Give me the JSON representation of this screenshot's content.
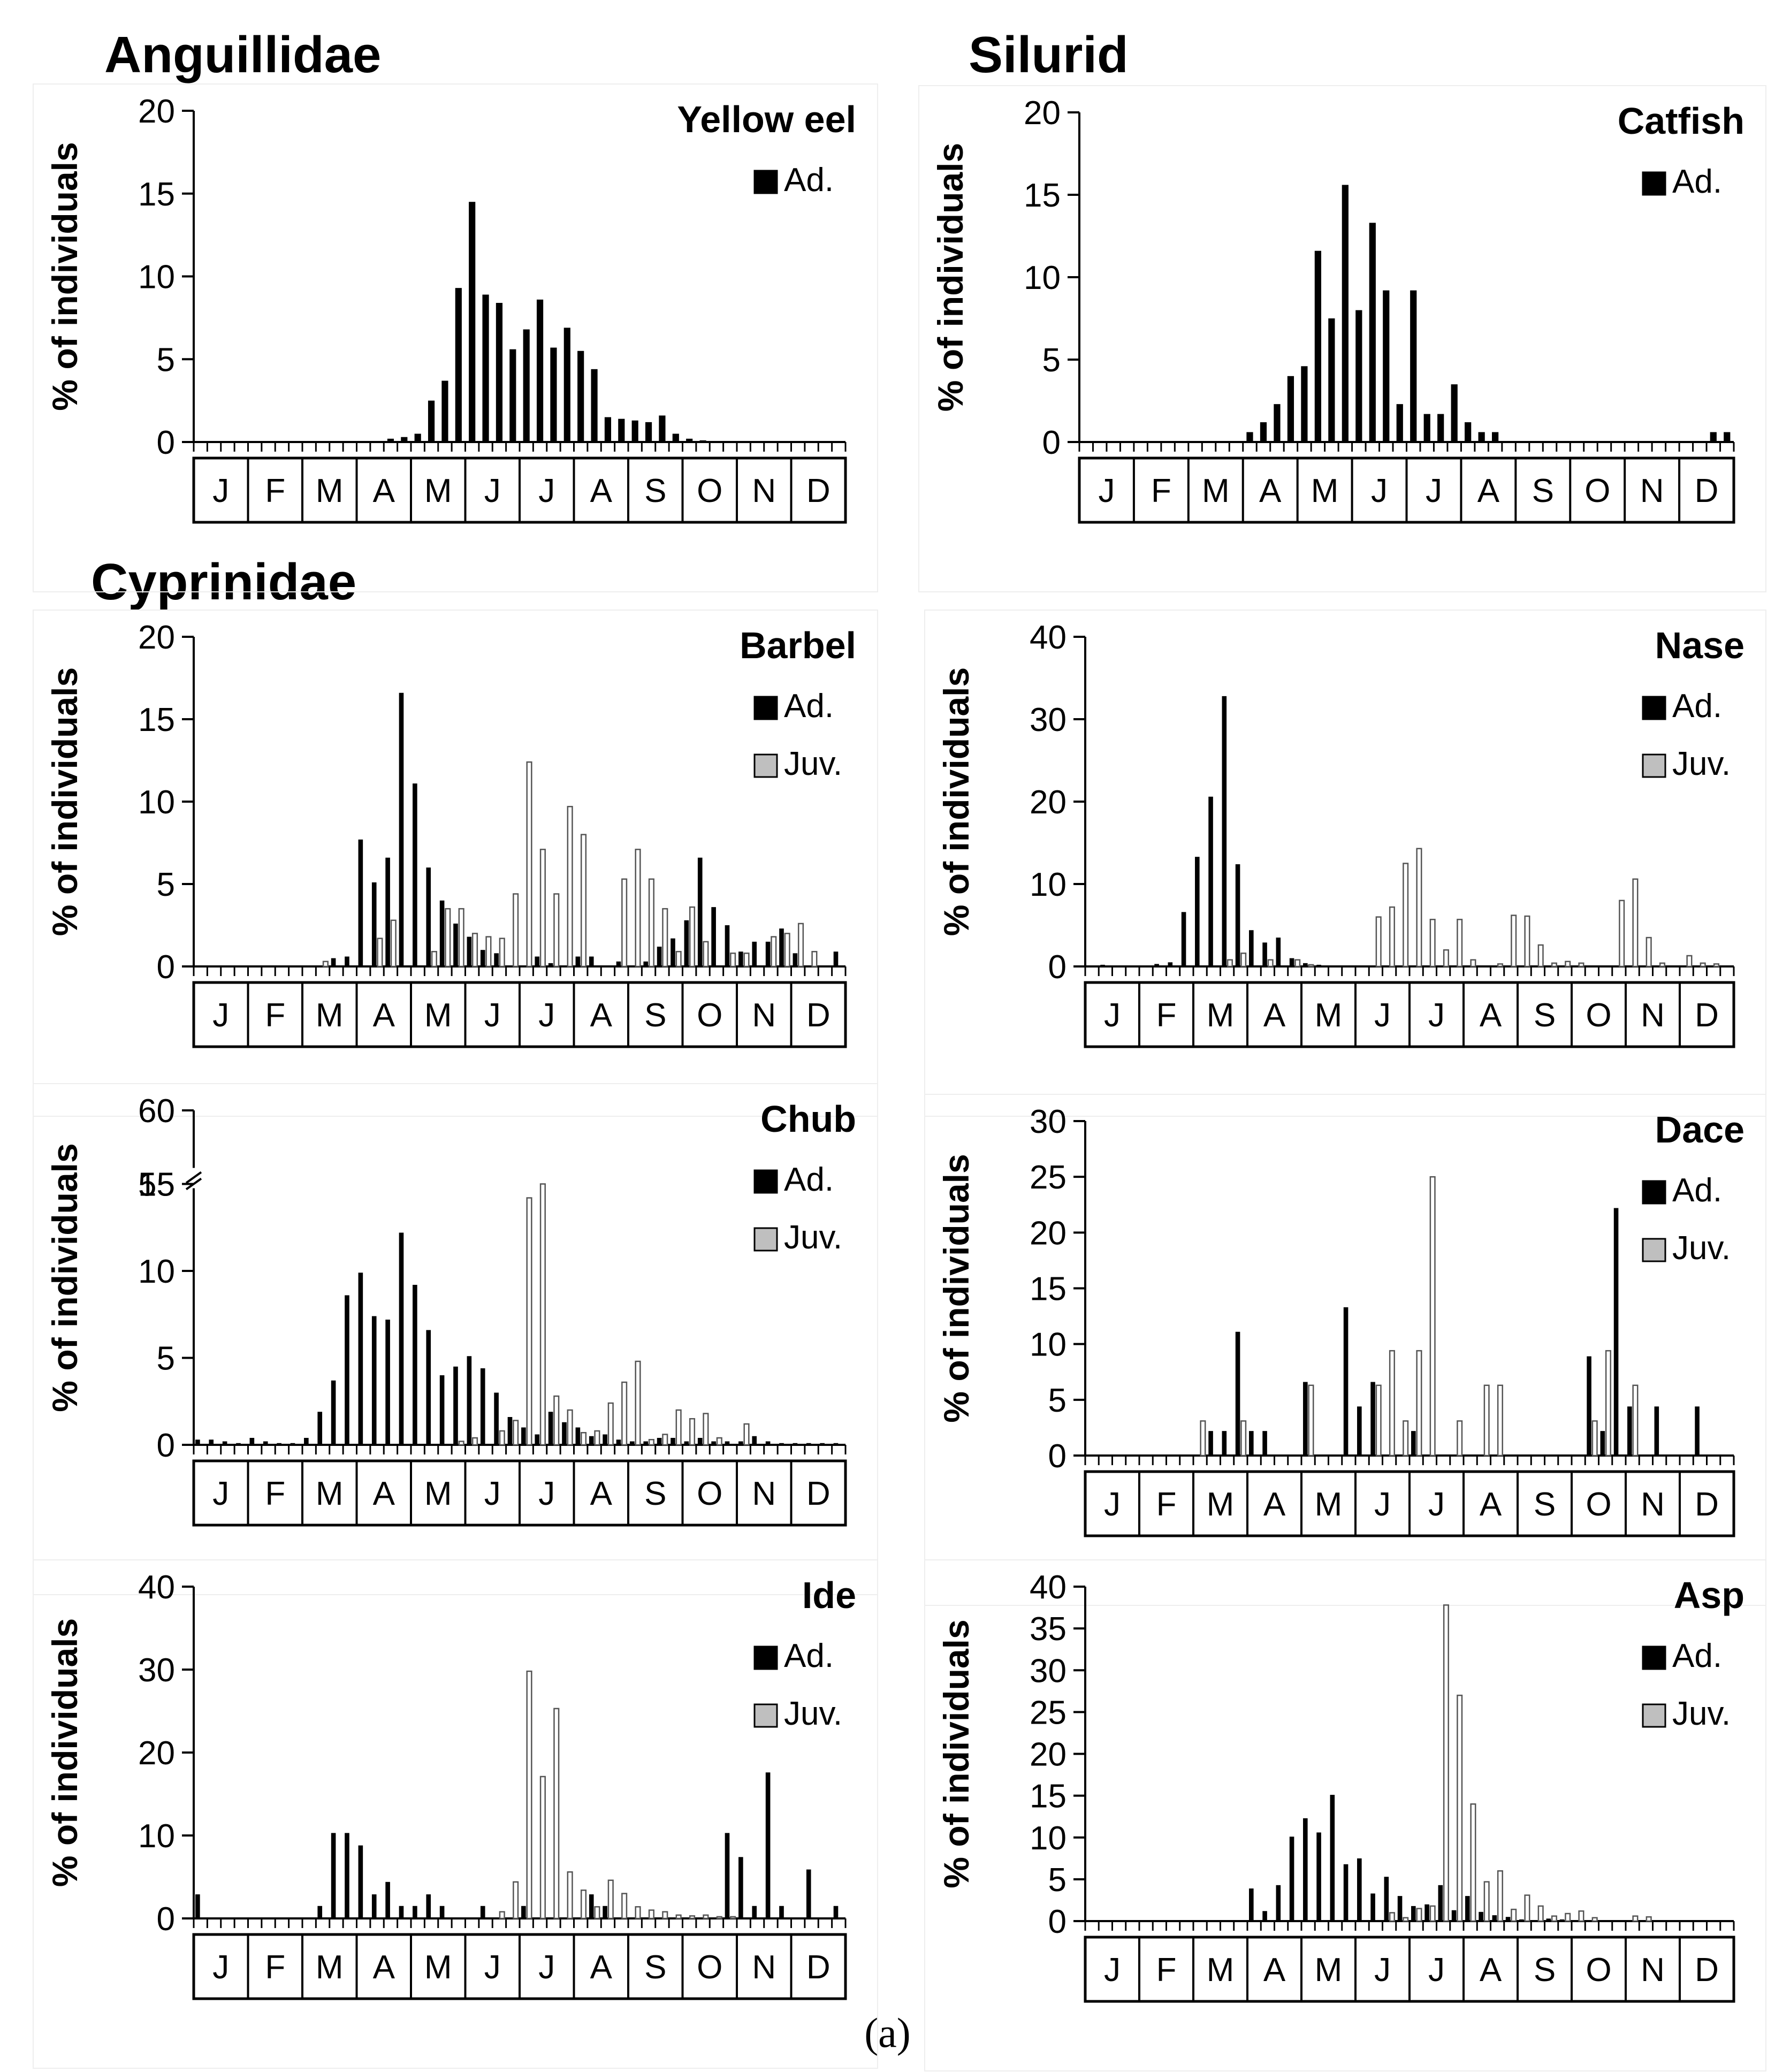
{
  "months": [
    "J",
    "F",
    "M",
    "A",
    "M",
    "J",
    "J",
    "A",
    "S",
    "O",
    "N",
    "D"
  ],
  "y_axis_label": "% of individuals",
  "families": {
    "anguillidae": "Anguillidae",
    "silurid": "Silurid",
    "cyprinidae": "Cyprinidae"
  },
  "caption": "(a)",
  "legend_labels": {
    "adult": "Ad.",
    "juvenile": "Juv."
  },
  "colors": {
    "adult": "#000000",
    "juvenile": "#bfbfbf",
    "axis": "#000000"
  },
  "chart_data": [
    {
      "type": "bar",
      "title": "Yellow eel",
      "family": "Anguillidae",
      "ylabel": "% of individuals",
      "ylim": [
        0,
        20
      ],
      "yticks": [
        0,
        5,
        10,
        15,
        20
      ],
      "bins_per_month": 4,
      "series": [
        {
          "name": "Ad.",
          "values": [
            0,
            0,
            0,
            0,
            0,
            0,
            0,
            0,
            0,
            0,
            0,
            0,
            0,
            0,
            0.2,
            0.3,
            0.5,
            2.5,
            3.7,
            9.3,
            14.5,
            8.9,
            8.4,
            5.6,
            6.8,
            8.6,
            5.7,
            6.9,
            5.5,
            4.4,
            1.5,
            1.4,
            1.3,
            1.2,
            1.6,
            0.5,
            0.2,
            0.1,
            0,
            0,
            0,
            0,
            0,
            0,
            0,
            0,
            0,
            0
          ]
        }
      ]
    },
    {
      "type": "bar",
      "title": "Catfish",
      "family": "Silurid",
      "ylabel": "% of individuals",
      "ylim": [
        0,
        20
      ],
      "yticks": [
        0,
        5,
        10,
        15,
        20
      ],
      "bins_per_month": 4,
      "series": [
        {
          "name": "Ad.",
          "values": [
            0,
            0,
            0,
            0,
            0,
            0,
            0,
            0,
            0,
            0,
            0,
            0,
            0.6,
            1.2,
            2.3,
            4.0,
            4.6,
            11.6,
            7.5,
            15.6,
            8.0,
            13.3,
            9.2,
            2.3,
            9.2,
            1.7,
            1.7,
            3.5,
            1.2,
            0.6,
            0.6,
            0,
            0,
            0,
            0,
            0,
            0,
            0,
            0,
            0,
            0,
            0,
            0,
            0,
            0,
            0,
            0.6,
            0.6
          ]
        }
      ]
    },
    {
      "type": "bar",
      "title": "Barbel",
      "family": "Cyprinidae",
      "ylabel": "% of individuals",
      "ylim": [
        0,
        20
      ],
      "yticks": [
        0,
        5,
        10,
        15,
        20
      ],
      "bins_per_month": 4,
      "series": [
        {
          "name": "Ad.",
          "values": [
            0,
            0,
            0,
            0,
            0,
            0,
            0,
            0,
            0,
            0,
            0.5,
            0.6,
            7.7,
            5.1,
            6.6,
            16.6,
            11.1,
            6.0,
            4.0,
            2.6,
            1.8,
            1.0,
            0.8,
            0,
            0,
            0.6,
            0.2,
            0,
            0.6,
            0.6,
            0,
            0.3,
            0,
            0.3,
            1.2,
            1.7,
            2.8,
            6.6,
            3.6,
            2.5,
            0.9,
            1.5,
            1.5,
            2.3,
            0.8,
            0,
            0,
            0.9
          ]
        },
        {
          "name": "Juv.",
          "values": [
            0,
            0,
            0,
            0,
            0,
            0,
            0,
            0,
            0,
            0.3,
            0,
            0,
            0,
            1.7,
            2.8,
            0,
            0,
            0.9,
            3.5,
            3.5,
            2.0,
            1.8,
            1.7,
            4.4,
            12.4,
            7.1,
            4.4,
            9.7,
            8.0,
            0,
            0,
            5.3,
            7.1,
            5.3,
            3.5,
            0.9,
            3.6,
            1.5,
            0,
            0.8,
            0.8,
            0,
            1.8,
            2.0,
            2.6,
            0.9,
            0,
            0
          ]
        }
      ]
    },
    {
      "type": "bar",
      "title": "Nase",
      "family": "Cyprinidae",
      "ylabel": "% of individuals",
      "ylim": [
        0,
        40
      ],
      "yticks": [
        0,
        10,
        20,
        30,
        40
      ],
      "bins_per_month": 4,
      "series": [
        {
          "name": "Ad.",
          "values": [
            0,
            0.2,
            0,
            0,
            0,
            0.3,
            0.5,
            6.6,
            13.3,
            20.6,
            32.8,
            12.4,
            4.4,
            2.9,
            3.5,
            1.0,
            0.4,
            0.2,
            0,
            0,
            0,
            0,
            0,
            0,
            0,
            0,
            0,
            0,
            0,
            0,
            0,
            0,
            0,
            0,
            0,
            0,
            0,
            0,
            0,
            0,
            0,
            0,
            0,
            0,
            0,
            0,
            0,
            0
          ]
        },
        {
          "name": "Juv.",
          "values": [
            0,
            0,
            0,
            0,
            0,
            0,
            0,
            0,
            0,
            0,
            0.8,
            1.6,
            0,
            0.8,
            0,
            0.8,
            0.2,
            0,
            0,
            0,
            0,
            6.0,
            7.2,
            12.5,
            14.3,
            5.7,
            2.0,
            5.7,
            0.8,
            0,
            0.3,
            6.2,
            6.1,
            2.6,
            0.4,
            0.6,
            0.4,
            0,
            0,
            8.0,
            10.6,
            3.5,
            0.4,
            0,
            1.3,
            0.4,
            0.3,
            0
          ]
        }
      ]
    },
    {
      "type": "bar",
      "title": "Chub",
      "family": "Cyprinidae",
      "ylabel": "% of individuals",
      "ylim": [
        0,
        60
      ],
      "yticks": [
        0,
        5,
        10,
        15,
        55,
        60
      ],
      "axis_break": [
        15,
        55
      ],
      "bins_per_month": 4,
      "series": [
        {
          "name": "Ad.",
          "values": [
            0.3,
            0.3,
            0.2,
            0.1,
            0.4,
            0.2,
            0.1,
            0.1,
            0.4,
            1.9,
            3.7,
            8.6,
            9.9,
            7.4,
            7.2,
            12.2,
            9.2,
            6.6,
            4.0,
            4.5,
            5.1,
            4.4,
            3.0,
            1.6,
            1.0,
            0.6,
            1.9,
            1.3,
            1.0,
            0.5,
            0.6,
            0.3,
            0.2,
            0.2,
            0.4,
            0.4,
            0.2,
            0.4,
            0.2,
            0.2,
            0.2,
            0.5,
            0.2,
            0.1,
            0.1,
            0.1,
            0.1,
            0.1
          ]
        },
        {
          "name": "Juv.",
          "values": [
            0,
            0,
            0,
            0,
            0,
            0,
            0,
            0,
            0,
            0,
            0,
            0,
            0,
            0,
            0,
            0,
            0,
            0,
            0,
            0.2,
            0.4,
            0,
            0.8,
            1.4,
            14.2,
            55.0,
            2.8,
            2.0,
            0.7,
            0.8,
            2.4,
            3.6,
            4.8,
            0.3,
            0.6,
            2.0,
            1.5,
            1.8,
            0.4,
            0,
            1.2,
            0,
            0,
            0,
            0,
            0,
            0,
            0
          ]
        }
      ]
    },
    {
      "type": "bar",
      "title": "Dace",
      "family": "Cyprinidae",
      "ylabel": "% of individuals",
      "ylim": [
        0,
        30
      ],
      "yticks": [
        0,
        5,
        10,
        15,
        20,
        25,
        30
      ],
      "bins_per_month": 4,
      "series": [
        {
          "name": "Ad.",
          "values": [
            0,
            0,
            0,
            0,
            0,
            0,
            0,
            0,
            0,
            2.2,
            2.2,
            11.1,
            2.2,
            2.2,
            0,
            0,
            6.6,
            0,
            0,
            13.3,
            4.4,
            6.6,
            0,
            0,
            2.2,
            0,
            0,
            0,
            0,
            0,
            0,
            0,
            0,
            0,
            0,
            0,
            0,
            8.9,
            2.2,
            22.2,
            4.4,
            0,
            4.4,
            0,
            0,
            4.4,
            0,
            0
          ]
        },
        {
          "name": "Juv.",
          "values": [
            0,
            0,
            0,
            0,
            0,
            0,
            0,
            0,
            3.1,
            0,
            0,
            3.1,
            0,
            0,
            0,
            0,
            6.3,
            0,
            0,
            0,
            0,
            6.3,
            9.4,
            3.1,
            9.4,
            25.0,
            0,
            3.1,
            0,
            6.3,
            6.3,
            0,
            0,
            0,
            0,
            0,
            0,
            3.1,
            9.4,
            0,
            6.3,
            0,
            0,
            0,
            0,
            0,
            0,
            0
          ]
        }
      ]
    },
    {
      "type": "bar",
      "title": "Ide",
      "family": "Cyprinidae",
      "ylabel": "% of individuals",
      "ylim": [
        0,
        40
      ],
      "yticks": [
        0,
        10,
        20,
        30,
        40
      ],
      "bins_per_month": 4,
      "series": [
        {
          "name": "Ad.",
          "values": [
            2.9,
            0,
            0,
            0,
            0,
            0,
            0,
            0,
            0,
            1.5,
            10.3,
            10.3,
            8.8,
            2.9,
            4.4,
            1.5,
            1.5,
            2.9,
            1.5,
            0,
            0,
            1.5,
            0,
            0,
            1.5,
            0,
            0,
            0,
            0,
            2.9,
            1.5,
            0,
            0,
            0,
            0,
            0,
            0,
            0,
            0,
            10.3,
            7.4,
            1.5,
            17.6,
            1.5,
            0,
            5.9,
            0,
            1.5
          ]
        },
        {
          "name": "Juv.",
          "values": [
            0,
            0,
            0,
            0,
            0,
            0,
            0,
            0,
            0,
            0,
            0,
            0,
            0,
            0,
            0,
            0,
            0,
            0,
            0,
            0,
            0,
            0,
            0.8,
            4.4,
            29.8,
            17.1,
            25.3,
            5.6,
            3.4,
            1.4,
            4.6,
            3.0,
            1.4,
            1.0,
            0.8,
            0.4,
            0.3,
            0.4,
            0.2,
            0.2,
            0,
            0,
            0,
            0,
            0,
            0,
            0,
            0
          ]
        }
      ]
    },
    {
      "type": "bar",
      "title": "Asp",
      "family": "Cyprinidae",
      "ylabel": "% of individuals",
      "ylim": [
        0,
        40
      ],
      "yticks": [
        0,
        5,
        10,
        15,
        20,
        25,
        30,
        35,
        40
      ],
      "bins_per_month": 4,
      "series": [
        {
          "name": "Ad.",
          "values": [
            0,
            0,
            0,
            0,
            0,
            0,
            0,
            0,
            0,
            0,
            0,
            0,
            3.9,
            1.2,
            4.3,
            10.1,
            12.3,
            10.6,
            15.1,
            6.8,
            7.5,
            3.3,
            5.3,
            3.0,
            1.8,
            2.0,
            4.3,
            1.3,
            3.0,
            1.1,
            0.7,
            0.5,
            0.2,
            0,
            0.3,
            0.2,
            0,
            0,
            0,
            0,
            0,
            0,
            0,
            0,
            0,
            0,
            0,
            0
          ]
        },
        {
          "name": "Juv.",
          "values": [
            0,
            0,
            0,
            0,
            0,
            0,
            0,
            0,
            0,
            0,
            0,
            0,
            0,
            0,
            0,
            0,
            0,
            0,
            0,
            0,
            0,
            0,
            1.0,
            0.4,
            1.5,
            1.8,
            37.8,
            27.0,
            14.0,
            4.7,
            6.0,
            1.4,
            3.1,
            1.8,
            0.6,
            0.9,
            1.2,
            0.4,
            0,
            0,
            0.6,
            0.5,
            0,
            0,
            0,
            0,
            0,
            0
          ]
        }
      ]
    }
  ]
}
